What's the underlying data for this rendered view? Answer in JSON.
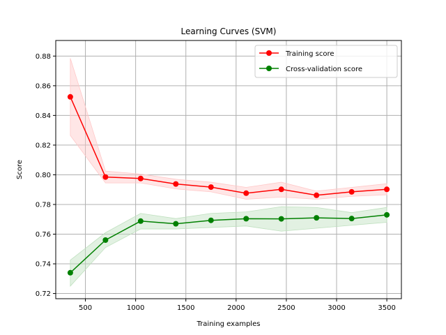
{
  "chart_data": {
    "type": "line",
    "title": "Learning Curves (SVM)",
    "xlabel": "Training examples",
    "ylabel": "Score",
    "xlim": [
      205,
      3645
    ],
    "ylim": [
      0.7165,
      0.8905
    ],
    "xticks": [
      500,
      1000,
      1500,
      2000,
      2500,
      3000,
      3500
    ],
    "xtick_labels": [
      "500",
      "1000",
      "1500",
      "2000",
      "2500",
      "3000",
      "3500"
    ],
    "yticks": [
      0.72,
      0.74,
      0.76,
      0.78,
      0.8,
      0.82,
      0.84,
      0.86,
      0.88
    ],
    "ytick_labels": [
      "0.72",
      "0.74",
      "0.76",
      "0.78",
      "0.80",
      "0.82",
      "0.84",
      "0.86",
      "0.88"
    ],
    "grid": true,
    "legend_position": "top-right",
    "x": [
      350,
      700,
      1050,
      1400,
      1750,
      2100,
      2450,
      2800,
      3150,
      3500
    ],
    "series": [
      {
        "name": "Training score",
        "color": "#ff0000",
        "values": [
          0.8525,
          0.7985,
          0.7975,
          0.7938,
          0.7917,
          0.7876,
          0.7902,
          0.7862,
          0.7885,
          0.7902
        ],
        "band_lower": [
          0.8265,
          0.7945,
          0.7945,
          0.7905,
          0.7885,
          0.7835,
          0.785,
          0.7835,
          0.7855,
          0.7865
        ],
        "band_upper": [
          0.8785,
          0.8025,
          0.8005,
          0.797,
          0.795,
          0.7915,
          0.795,
          0.789,
          0.7915,
          0.794
        ],
        "band_color": "#ffc8c8"
      },
      {
        "name": "Cross-validation score",
        "color": "#008000",
        "values": [
          0.734,
          0.756,
          0.7688,
          0.767,
          0.7693,
          0.7704,
          0.7703,
          0.771,
          0.7705,
          0.773
        ],
        "band_lower": [
          0.725,
          0.751,
          0.7635,
          0.7635,
          0.7645,
          0.7655,
          0.762,
          0.764,
          0.766,
          0.768
        ],
        "band_upper": [
          0.7425,
          0.761,
          0.774,
          0.7705,
          0.774,
          0.775,
          0.7785,
          0.778,
          0.7745,
          0.778
        ],
        "band_color": "#bfe0bf"
      }
    ]
  }
}
